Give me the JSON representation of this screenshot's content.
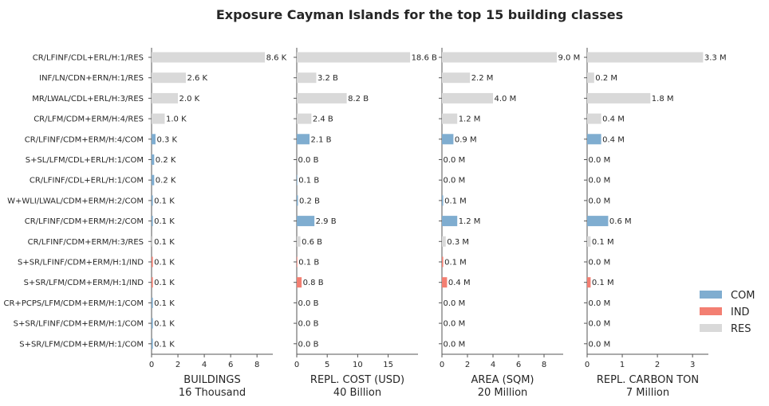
{
  "chart_data": {
    "type": "bar",
    "orientation": "horizontal",
    "title": "Exposure Cayman Islands for the top 15 building classes",
    "categories": [
      "CR/LFINF/CDL+ERL/H:1/RES",
      "INF/LN/CDN+ERN/H:1/RES",
      "MR/LWAL/CDL+ERL/H:3/RES",
      "CR/LFM/CDM+ERM/H:4/RES",
      "CR/LFINF/CDM+ERM/H:4/COM",
      "S+SL/LFM/CDL+ERL/H:1/COM",
      "CR/LFINF/CDL+ERL/H:1/COM",
      "W+WLI/LWAL/CDM+ERM/H:2/COM",
      "CR/LFINF/CDM+ERM/H:2/COM",
      "CR/LFINF/CDM+ERM/H:3/RES",
      "S+SR/LFINF/CDM+ERM/H:1/IND",
      "S+SR/LFM/CDM+ERM/H:1/IND",
      "CR+PCPS/LFM/CDM+ERM/H:1/COM",
      "S+SR/LFINF/CDM+ERM/H:1/COM",
      "S+SR/LFM/CDM+ERM/H:1/COM"
    ],
    "occupancy": [
      "RES",
      "RES",
      "RES",
      "RES",
      "COM",
      "COM",
      "COM",
      "COM",
      "COM",
      "RES",
      "IND",
      "IND",
      "COM",
      "COM",
      "COM"
    ],
    "legend": {
      "position": "right",
      "entries": [
        {
          "name": "COM",
          "color": "#7fadd0"
        },
        {
          "name": "IND",
          "color": "#f37f72"
        },
        {
          "name": "RES",
          "color": "#d9d9d9"
        }
      ]
    },
    "panels": [
      {
        "xlabel": "BUILDINGS",
        "total": "16 Thousand",
        "xlim": [
          0,
          9.2
        ],
        "ticks": [
          0,
          2,
          4,
          6,
          8
        ],
        "values": [
          8.6,
          2.6,
          2.0,
          1.0,
          0.3,
          0.2,
          0.2,
          0.1,
          0.1,
          0.1,
          0.1,
          0.1,
          0.1,
          0.1,
          0.1
        ],
        "labels": [
          "8.6 K",
          "2.6 K",
          "2.0 K",
          "1.0 K",
          "0.3 K",
          "0.2 K",
          "0.2 K",
          "0.1 K",
          "0.1 K",
          "0.1 K",
          "0.1 K",
          "0.1 K",
          "0.1 K",
          "0.1 K",
          "0.1 K"
        ]
      },
      {
        "xlabel": "REPL. COST (USD)",
        "total": "40 Billion",
        "xlim": [
          0,
          19.9
        ],
        "ticks": [
          0,
          5,
          10,
          15
        ],
        "values": [
          18.6,
          3.2,
          8.2,
          2.4,
          2.1,
          0.0,
          0.1,
          0.2,
          2.9,
          0.6,
          0.1,
          0.8,
          0.0,
          0.0,
          0.0
        ],
        "labels": [
          "18.6 B",
          "3.2 B",
          "8.2 B",
          "2.4 B",
          "2.1 B",
          "0.0 B",
          "0.1 B",
          "0.2 B",
          "2.9 B",
          "0.6 B",
          "0.1 B",
          "0.8 B",
          "0.0 B",
          "0.0 B",
          "0.0 B"
        ]
      },
      {
        "xlabel": "AREA (SQM)",
        "total": "20 Million",
        "xlim": [
          0,
          9.5
        ],
        "ticks": [
          0,
          2,
          4,
          6,
          8
        ],
        "values": [
          9.0,
          2.2,
          4.0,
          1.2,
          0.9,
          0.0,
          0.0,
          0.1,
          1.2,
          0.3,
          0.1,
          0.4,
          0.0,
          0.0,
          0.0
        ],
        "labels": [
          "9.0 M",
          "2.2 M",
          "4.0 M",
          "1.2 M",
          "0.9 M",
          "0.0 M",
          "0.0 M",
          "0.1 M",
          "1.2 M",
          "0.3 M",
          "0.1 M",
          "0.4 M",
          "0.0 M",
          "0.0 M",
          "0.0 M"
        ]
      },
      {
        "xlabel": "REPL. CARBON TON",
        "total": "7 Million",
        "xlim": [
          0,
          3.45
        ],
        "ticks": [
          0,
          1,
          2,
          3
        ],
        "values": [
          3.3,
          0.2,
          1.8,
          0.4,
          0.4,
          0.0,
          0.0,
          0.0,
          0.6,
          0.1,
          0.0,
          0.1,
          0.0,
          0.0,
          0.0
        ],
        "labels": [
          "3.3 M",
          "0.2 M",
          "1.8 M",
          "0.4 M",
          "0.4 M",
          "0.0 M",
          "0.0 M",
          "0.0 M",
          "0.6 M",
          "0.1 M",
          "0.0 M",
          "0.1 M",
          "0.0 M",
          "0.0 M",
          "0.0 M"
        ]
      }
    ]
  }
}
